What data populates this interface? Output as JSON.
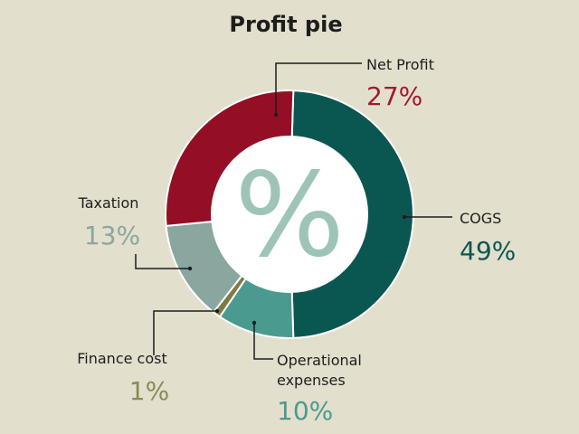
{
  "chart_data": {
    "type": "pie",
    "title": "Profit pie",
    "center_symbol": "%",
    "center_symbol_color": "#9ec4b7",
    "legend_placement": "direct-labels",
    "slices": [
      {
        "label": "COGS",
        "value": 49,
        "value_label": "49%",
        "color": "#0a5751",
        "pct_color": "#0a5751"
      },
      {
        "label": "Operational expenses",
        "label_lines": [
          "Operational",
          "expenses"
        ],
        "value": 10,
        "value_label": "10%",
        "color": "#4b9a8f",
        "pct_color": "#4b9a8f"
      },
      {
        "label": "Finance cost",
        "value": 1,
        "value_label": "1%",
        "color": "#7d7a45",
        "pct_color": "#8a8a55"
      },
      {
        "label": "Taxation",
        "value": 13,
        "value_label": "13%",
        "color": "#89a79f",
        "pct_color": "#89a79f"
      },
      {
        "label": "Net Profit",
        "value": 27,
        "value_label": "27%",
        "color": "#940f25",
        "pct_color": "#a3182d"
      }
    ]
  }
}
